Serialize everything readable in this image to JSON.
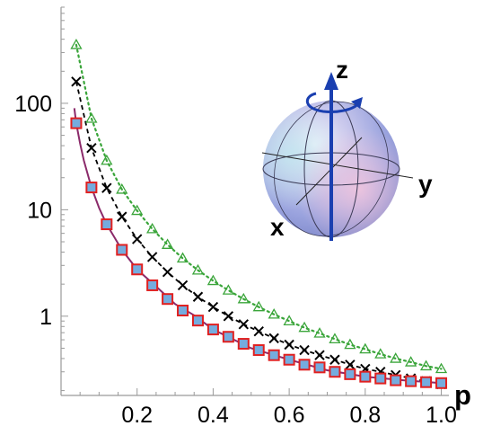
{
  "chart_data": {
    "type": "scatter",
    "title": "",
    "xlabel": "p",
    "ylabel": "",
    "y_scale": "log",
    "xlim": [
      0.0,
      1.02
    ],
    "ylim": [
      0.18,
      800
    ],
    "x_ticks": [
      0.2,
      0.4,
      0.6,
      0.8,
      1.0
    ],
    "x_tick_labels": [
      "0.2",
      "0.4",
      "0.6",
      "0.8",
      "1.0"
    ],
    "y_ticks": [
      1,
      10,
      100
    ],
    "y_tick_labels": [
      "1",
      "10",
      "100"
    ],
    "grid": false,
    "legend": "none",
    "series": [
      {
        "marker": "triangle",
        "line": "dotted",
        "color": "#3aa53a",
        "x": [
          0.04,
          0.08,
          0.12,
          0.16,
          0.2,
          0.24,
          0.28,
          0.32,
          0.36,
          0.4,
          0.44,
          0.48,
          0.52,
          0.56,
          0.6,
          0.64,
          0.68,
          0.72,
          0.76,
          0.8,
          0.84,
          0.88,
          0.92,
          0.96,
          1.0
        ],
        "values": [
          355,
          72,
          29,
          15.5,
          9.8,
          6.6,
          4.7,
          3.5,
          2.7,
          2.15,
          1.75,
          1.45,
          1.22,
          1.04,
          0.9,
          0.78,
          0.69,
          0.61,
          0.54,
          0.49,
          0.44,
          0.4,
          0.37,
          0.34,
          0.32
        ]
      },
      {
        "marker": "x",
        "line": "dashed",
        "color": "#000000",
        "x": [
          0.04,
          0.08,
          0.12,
          0.16,
          0.2,
          0.24,
          0.28,
          0.32,
          0.36,
          0.4,
          0.44,
          0.48,
          0.52,
          0.56,
          0.6,
          0.64,
          0.68,
          0.72,
          0.76,
          0.8,
          0.84,
          0.88,
          0.92,
          0.96,
          1.0
        ],
        "values": [
          160,
          38,
          16,
          8.6,
          5.3,
          3.6,
          2.6,
          1.95,
          1.52,
          1.22,
          1.0,
          0.84,
          0.72,
          0.62,
          0.54,
          0.48,
          0.43,
          0.39,
          0.35,
          0.32,
          0.3,
          0.28,
          0.26,
          0.245,
          0.23
        ]
      },
      {
        "marker": "circle",
        "line": "none",
        "color": "#5aa0d8",
        "x": [
          0.04,
          0.08,
          0.12,
          0.16,
          0.2,
          0.24,
          0.28,
          0.32,
          0.36,
          0.4,
          0.44,
          0.48,
          0.52,
          0.56,
          0.6,
          0.64,
          0.68,
          0.72,
          0.76,
          0.8,
          0.84,
          0.88,
          0.92,
          0.96,
          1.0
        ],
        "values": [
          65,
          16.2,
          7.3,
          4.2,
          2.75,
          1.95,
          1.45,
          1.13,
          0.91,
          0.75,
          0.64,
          0.55,
          0.48,
          0.43,
          0.39,
          0.35,
          0.33,
          0.3,
          0.285,
          0.27,
          0.26,
          0.25,
          0.245,
          0.24,
          0.235
        ]
      },
      {
        "marker": "square",
        "line": "none",
        "color": "#e02020",
        "x": [
          0.04,
          0.08,
          0.12,
          0.16,
          0.2,
          0.24,
          0.28,
          0.32,
          0.36,
          0.4,
          0.44,
          0.48,
          0.52,
          0.56,
          0.6,
          0.64,
          0.68,
          0.72,
          0.76,
          0.8,
          0.84,
          0.88,
          0.92,
          0.96,
          1.0
        ],
        "values": [
          65,
          16.2,
          7.3,
          4.2,
          2.75,
          1.95,
          1.45,
          1.13,
          0.91,
          0.75,
          0.64,
          0.55,
          0.48,
          0.43,
          0.39,
          0.35,
          0.33,
          0.3,
          0.285,
          0.27,
          0.26,
          0.25,
          0.245,
          0.24,
          0.235
        ]
      },
      {
        "marker": "none",
        "line": "solid",
        "color": "#8b2a6a",
        "x": [
          0.035,
          0.04,
          0.05,
          0.06,
          0.08,
          0.1,
          0.12,
          0.16,
          0.2,
          0.25,
          0.3,
          0.35,
          0.4,
          0.5,
          0.6,
          0.7,
          0.8,
          0.9,
          1.0
        ],
        "values": [
          90,
          65,
          42,
          29,
          16.2,
          10.4,
          7.3,
          4.2,
          2.75,
          1.9,
          1.3,
          1.02,
          0.75,
          0.5,
          0.39,
          0.31,
          0.27,
          0.25,
          0.235
        ]
      }
    ],
    "inset": {
      "type": "bloch-sphere",
      "axis_labels": [
        "z",
        "y",
        "x"
      ]
    }
  }
}
